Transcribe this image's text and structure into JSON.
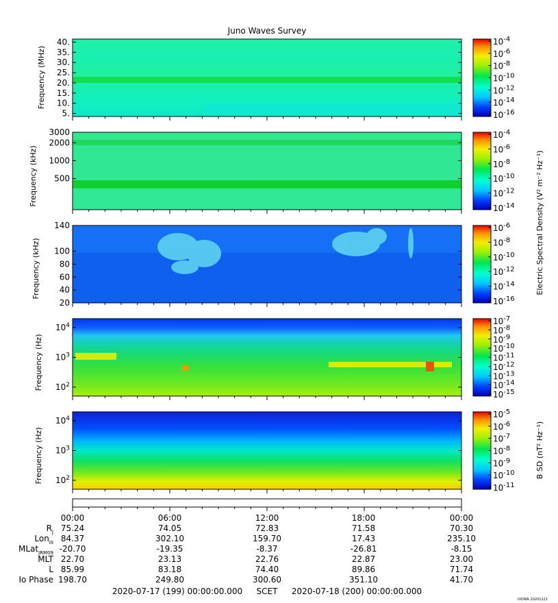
{
  "title": "Juno Waves Survey",
  "credit": "UIOWA 20201221",
  "colors": {
    "spectrum": [
      "#0000b4",
      "#0040ff",
      "#00c8ff",
      "#00ffd0",
      "#00e650",
      "#a0f000",
      "#f0f000",
      "#ff9000",
      "#e60000"
    ]
  },
  "chart_data": [
    {
      "type": "heatmap",
      "id": "panel1",
      "ylabel": "Frequency (MHz)",
      "yscale": "linear",
      "ylim": [
        3.5,
        41.5
      ],
      "yticks": [
        "40.",
        "35.",
        "30.",
        "25.",
        "20.",
        "15.",
        "10.",
        "5."
      ],
      "ytick_values": [
        40,
        35,
        30,
        25,
        20,
        15,
        10,
        5
      ],
      "colorbar": {
        "scale": "log",
        "ticks_exp": [
          "-4",
          "-6",
          "-8",
          "-10",
          "-12",
          "-14",
          "-16"
        ],
        "label": ""
      },
      "features": [
        "background ~1e-12",
        "band near 21.5 MHz ~1e-11"
      ]
    },
    {
      "type": "heatmap",
      "id": "panel2",
      "ylabel": "Frequency (kHz)",
      "yscale": "log",
      "ylim": [
        150,
        3000
      ],
      "yticks": [
        "3000",
        "2000",
        "1000",
        "500"
      ],
      "ytick_values": [
        3000,
        2000,
        1000,
        500
      ],
      "colorbar": {
        "scale": "log",
        "ticks_exp": [
          "-4",
          "-6",
          "-8",
          "-10",
          "-12",
          "-14"
        ],
        "label": "Electric Spectral Density (V² m⁻² Hz⁻¹)"
      },
      "features": [
        "band near 2000 kHz",
        "band near 400 kHz"
      ]
    },
    {
      "type": "heatmap",
      "id": "panel3",
      "ylabel": "Frequency (kHz)",
      "yscale": "linear",
      "ylim": [
        20,
        140
      ],
      "yticks": [
        "140",
        "100",
        "80",
        "60",
        "40",
        "20"
      ],
      "ytick_values": [
        140,
        100,
        80,
        60,
        40,
        20
      ],
      "colorbar": {
        "scale": "log",
        "ticks_exp": [
          "-6",
          "-8",
          "-10",
          "-12",
          "-14",
          "-16"
        ],
        "label": ""
      },
      "features": [
        "emission patches 05:30-09:00 and 16:30-20:00 UT, 50-140 kHz"
      ]
    },
    {
      "type": "heatmap",
      "id": "panel4",
      "ylabel": "Frequency (Hz)",
      "yscale": "log",
      "ylim": [
        50,
        20000
      ],
      "yticks_exp": [
        "4",
        "3",
        "2"
      ],
      "ytick_values": [
        10000,
        1000,
        100
      ],
      "colorbar": {
        "scale": "log",
        "ticks_exp": [
          "-7",
          "-8",
          "-9",
          "-10",
          "-11",
          "-12",
          "-13",
          "-14",
          "-15"
        ],
        "label": ""
      },
      "features": [
        "cutoff ~3-6 kHz",
        "emission band ~0.6-1 kHz"
      ]
    },
    {
      "type": "heatmap",
      "id": "panel5",
      "ylabel": "Frequency (Hz)",
      "yscale": "log",
      "ylim": [
        50,
        20000
      ],
      "yticks_exp": [
        "4",
        "3",
        "2"
      ],
      "ytick_values": [
        10000,
        1000,
        100
      ],
      "colorbar": {
        "scale": "log",
        "ticks_exp": [
          "-5",
          "-6",
          "-7",
          "-8",
          "-9",
          "-10",
          "-11"
        ],
        "label": "B SD (nT² Hz⁻¹)"
      },
      "features": [
        "intensity increases toward low frequencies"
      ]
    }
  ],
  "ephemeris": {
    "times": [
      "00:00",
      "06:00",
      "12:00",
      "18:00",
      "00:00"
    ],
    "rows": [
      {
        "label": "R",
        "sub": "J",
        "values": [
          "75.24",
          "74.05",
          "72.83",
          "71.58",
          "70.30"
        ]
      },
      {
        "label": "Lon",
        "sub": "III",
        "values": [
          "84.37",
          "302.10",
          "159.70",
          "17.43",
          "235.10"
        ]
      },
      {
        "label": "MLat",
        "sub": "JRM09",
        "values": [
          "-20.70",
          "-19.35",
          "-8.37",
          "-26.81",
          "-8.15"
        ]
      },
      {
        "label": "MLT",
        "sub": "",
        "values": [
          "22.70",
          "23.13",
          "22.76",
          "22.87",
          "23.00"
        ]
      },
      {
        "label": "L",
        "sub": "",
        "values": [
          "85.99",
          "83.18",
          "74.40",
          "89.86",
          "71.74"
        ]
      },
      {
        "label": "Io Phase",
        "sub": "",
        "values": [
          "198.70",
          "249.80",
          "300.60",
          "351.10",
          "41.70"
        ]
      }
    ],
    "footer_start": "2020-07-17 (199) 00:00:00.000",
    "footer_mid": "SCET",
    "footer_end": "2020-07-18 (200) 00:00:00.000"
  }
}
